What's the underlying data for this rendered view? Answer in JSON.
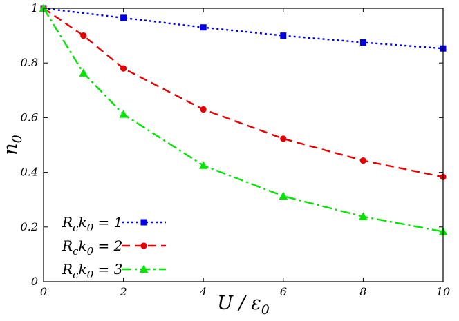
{
  "chart_data": {
    "type": "line",
    "xlabel": "U / ε0",
    "ylabel": "n0",
    "xlim": [
      0,
      10
    ],
    "ylim": [
      0,
      1
    ],
    "x_ticks": [
      0,
      2,
      4,
      6,
      8,
      10
    ],
    "y_ticks": [
      0,
      0.2,
      0.4,
      0.6,
      0.8,
      1
    ],
    "x_tick_labels": [
      "0",
      "2",
      "4",
      "6",
      "8",
      "10"
    ],
    "y_tick_labels": [
      "0",
      "0.2",
      "0.4",
      "0.6",
      "0.8",
      "1"
    ],
    "grid": false,
    "legend_position": "bottom-left",
    "series": [
      {
        "name": "Rck0 = 1",
        "color": "#0000e6",
        "marker": "square",
        "line_style": "dotted",
        "x": [
          0,
          2,
          4,
          6,
          8,
          10
        ],
        "y": [
          1.0,
          0.965,
          0.93,
          0.9,
          0.875,
          0.853
        ]
      },
      {
        "name": "Rck0 = 2",
        "color": "#e60000",
        "marker": "circle",
        "line_style": "dashed",
        "x": [
          0,
          1,
          2,
          4,
          6,
          8,
          10
        ],
        "y": [
          1.0,
          0.9,
          0.78,
          0.63,
          0.523,
          0.443,
          0.383
        ]
      },
      {
        "name": "Rck0 = 3",
        "color": "#00e600",
        "marker": "triangle",
        "line_style": "dash-dot",
        "x": [
          0,
          1,
          2,
          4,
          6,
          8,
          10
        ],
        "y": [
          1.0,
          0.763,
          0.612,
          0.425,
          0.313,
          0.238,
          0.183
        ]
      }
    ]
  }
}
